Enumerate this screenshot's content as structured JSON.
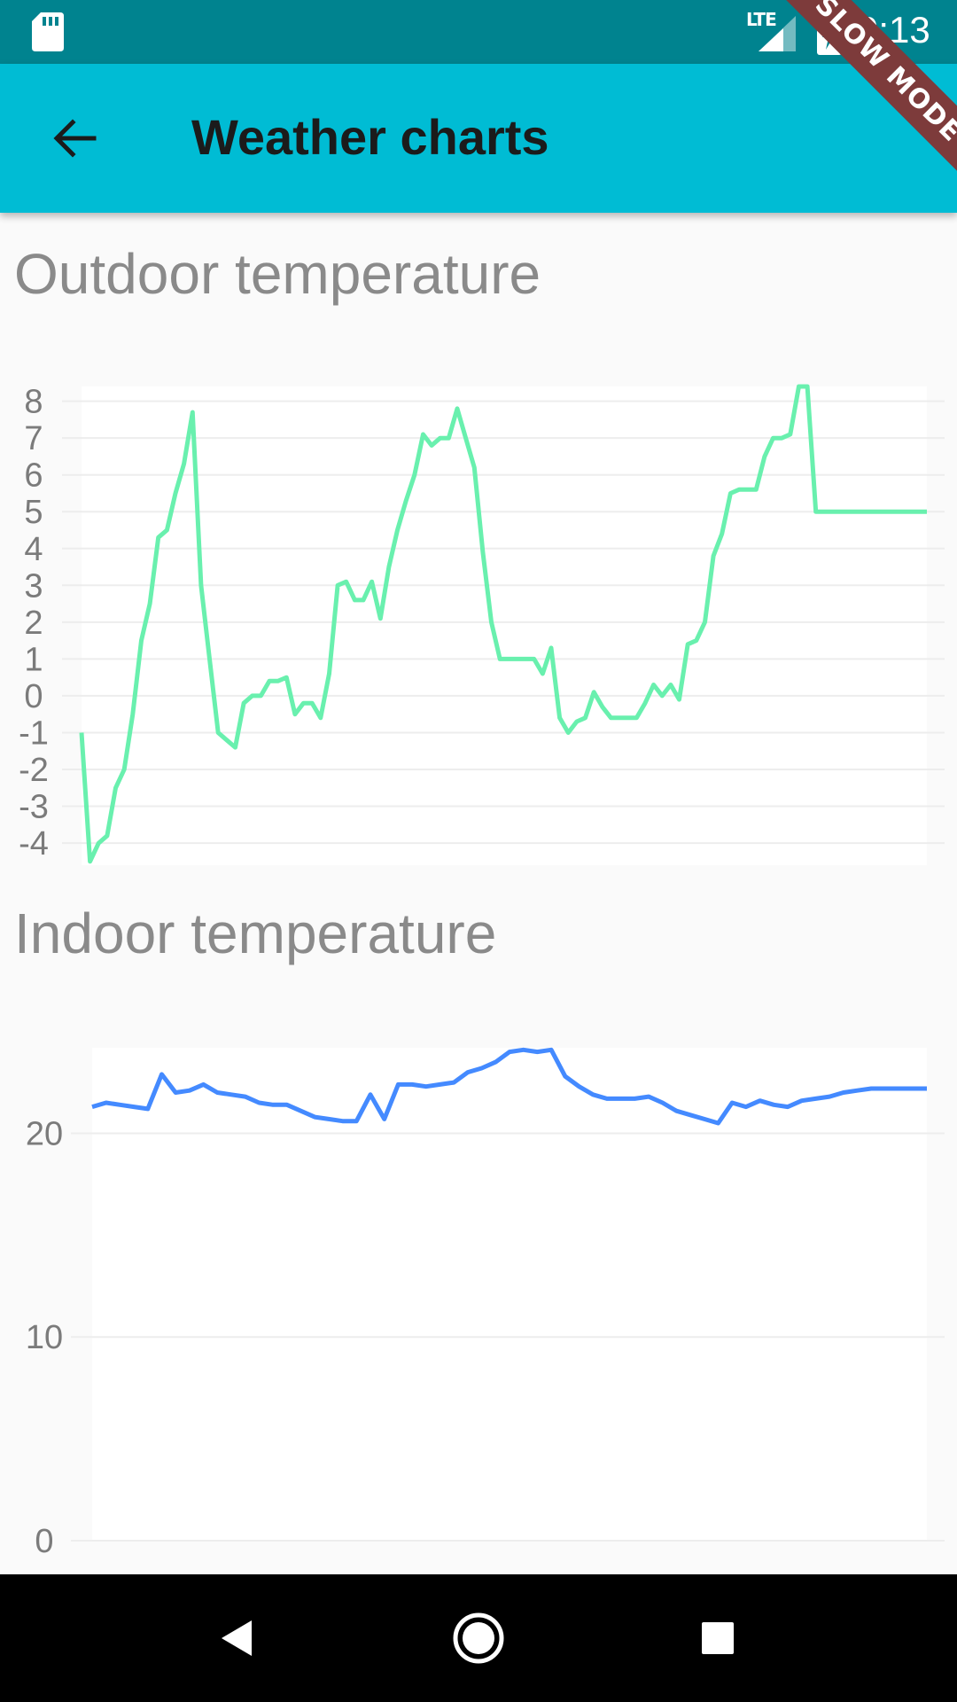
{
  "status_bar": {
    "time": "9:13",
    "network_label": "LTE",
    "icons": [
      "sd-card-icon",
      "signal-icon",
      "battery-charging-icon"
    ]
  },
  "app_bar": {
    "title": "Weather charts",
    "back_icon": "arrow-back-icon",
    "background": "#00bcd4"
  },
  "debug_banner": "SLOW MODE",
  "charts": {
    "outdoor": {
      "title": "Outdoor temperature"
    },
    "indoor": {
      "title": "Indoor temperature"
    }
  },
  "chart_data": [
    {
      "type": "line",
      "title": "Outdoor temperature",
      "series_color": "#69f0ae",
      "y_ticks": [
        8,
        7,
        6,
        5,
        4,
        3,
        2,
        1,
        0,
        -1,
        -2,
        -3,
        -4
      ],
      "y_tick_labels": [
        "8",
        "7",
        "6",
        "5",
        "4",
        "3",
        "2",
        "1",
        "0",
        "-1",
        "-2",
        "-3",
        "-4"
      ],
      "ylim": [
        -4.6,
        8.4
      ],
      "grid": true,
      "x": [
        0,
        1,
        2,
        3,
        4,
        5,
        6,
        7,
        8,
        9,
        10,
        11,
        12,
        13,
        14,
        15,
        16,
        17,
        18,
        19,
        20,
        21,
        22,
        23,
        24,
        25,
        26,
        27,
        28,
        29,
        30,
        31,
        32,
        33,
        34,
        35,
        36,
        37,
        38,
        39,
        40,
        41,
        42,
        43,
        44,
        45,
        46,
        47,
        48,
        49,
        50,
        51,
        52,
        53,
        54,
        55,
        56,
        57,
        58,
        59,
        60,
        61,
        62,
        63,
        64,
        65,
        66,
        67,
        68,
        69,
        70,
        71,
        72,
        73,
        74,
        75,
        76,
        77,
        78,
        79,
        80,
        81,
        82,
        83,
        84,
        85,
        86,
        87,
        88,
        89,
        90,
        91,
        92,
        93,
        94,
        95,
        96,
        97,
        98,
        99
      ],
      "values": [
        -1.0,
        -4.5,
        -4.0,
        -3.8,
        -2.5,
        -2.0,
        -0.5,
        1.5,
        2.5,
        4.3,
        4.5,
        5.5,
        6.3,
        7.7,
        3.0,
        1.0,
        -1.0,
        -1.2,
        -1.4,
        -0.2,
        0.0,
        0.0,
        0.4,
        0.4,
        0.5,
        -0.5,
        -0.2,
        -0.2,
        -0.6,
        0.6,
        3.0,
        3.1,
        2.6,
        2.6,
        3.1,
        2.1,
        3.5,
        4.5,
        5.3,
        6.0,
        7.1,
        6.8,
        7.0,
        7.0,
        7.8,
        7.0,
        6.2,
        3.9,
        2.0,
        1.0,
        1.0,
        1.0,
        1.0,
        1.0,
        0.6,
        1.3,
        -0.6,
        -1.0,
        -0.7,
        -0.6,
        0.1,
        -0.3,
        -0.6,
        -0.6,
        -0.6,
        -0.6,
        -0.2,
        0.3,
        0.0,
        0.3,
        -0.1,
        1.4,
        1.5,
        2.0,
        3.8,
        4.4,
        5.5,
        5.6,
        5.6,
        5.6,
        6.5,
        7.0,
        7.0,
        7.1,
        8.4,
        8.4,
        5.0,
        5.0,
        5.0,
        5.0,
        5.0,
        5.0,
        5.0,
        5.0,
        5.0,
        5.0,
        5.0,
        5.0,
        5.0,
        5.0
      ]
    },
    {
      "type": "line",
      "title": "Indoor temperature",
      "series_color": "#448aff",
      "y_ticks": [
        20,
        10,
        0
      ],
      "y_tick_labels": [
        "20",
        "10",
        "0"
      ],
      "ylim": [
        0,
        24.2
      ],
      "grid": true,
      "x": [
        0,
        1,
        2,
        3,
        4,
        5,
        6,
        7,
        8,
        9,
        10,
        11,
        12,
        13,
        14,
        15,
        16,
        17,
        18,
        19,
        20,
        21,
        22,
        23,
        24,
        25,
        26,
        27,
        28,
        29,
        30,
        31,
        32,
        33,
        34,
        35,
        36,
        37,
        38,
        39,
        40,
        41,
        42,
        43,
        44,
        45,
        46,
        47,
        48,
        49,
        50,
        51,
        52,
        53,
        54,
        55,
        56,
        57,
        58,
        59,
        60
      ],
      "values": [
        21.3,
        21.5,
        21.4,
        21.3,
        21.2,
        22.9,
        22.0,
        22.1,
        22.4,
        22.0,
        21.9,
        21.8,
        21.5,
        21.4,
        21.4,
        21.1,
        20.8,
        20.7,
        20.6,
        20.6,
        21.9,
        20.7,
        22.4,
        22.4,
        22.3,
        22.4,
        22.5,
        23.0,
        23.2,
        23.5,
        24.0,
        24.1,
        24.0,
        24.1,
        22.8,
        22.3,
        21.9,
        21.7,
        21.7,
        21.7,
        21.8,
        21.5,
        21.1,
        20.9,
        20.7,
        20.5,
        21.5,
        21.3,
        21.6,
        21.4,
        21.3,
        21.6,
        21.7,
        21.8,
        22.0,
        22.1,
        22.2,
        22.2,
        22.2,
        22.2,
        22.2
      ]
    }
  ],
  "nav_bar": {
    "icons": [
      "nav-back-icon",
      "nav-home-icon",
      "nav-recent-icon"
    ]
  }
}
